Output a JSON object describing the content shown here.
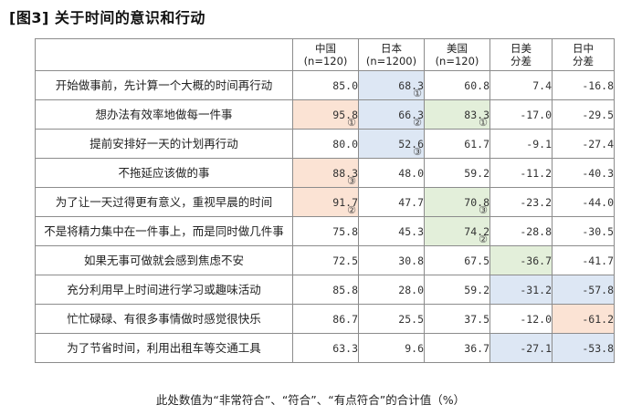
{
  "title": "[图3] 关于时间的意识和行动",
  "headers": {
    "china": [
      "中国",
      "(n=120)"
    ],
    "japan": [
      "日本",
      "(n=1200)"
    ],
    "usa": [
      "美国",
      "(n=120)"
    ],
    "diff_jp_us": [
      "日美",
      "分差"
    ],
    "diff_jp_cn": [
      "日中",
      "分差"
    ]
  },
  "colors": {
    "orange": "#fbe3d4",
    "blue": "#dde7f4",
    "green": "#e3efda",
    "border": "#8c8c8c"
  },
  "rows": [
    {
      "label": "开始做事前，先计算一个大概的时间再行动",
      "cn": "85.0",
      "jp": "68.3",
      "jp_rank": "①",
      "us": "60.8",
      "d1": "7.4",
      "d2": "-16.8"
    },
    {
      "label": "想办法有效率地做每一件事",
      "cn": "95.8",
      "cn_rank": "①",
      "jp": "66.3",
      "jp_rank": "②",
      "us": "83.3",
      "us_rank": "①",
      "d1": "-17.0",
      "d2": "-29.5"
    },
    {
      "label": "提前安排好一天的计划再行动",
      "cn": "80.0",
      "jp": "52.6",
      "jp_rank": "③",
      "us": "61.7",
      "d1": "-9.1",
      "d2": "-27.4"
    },
    {
      "label": "不拖延应该做的事",
      "cn": "88.3",
      "cn_rank": "③",
      "jp": "48.0",
      "us": "59.2",
      "d1": "-11.2",
      "d2": "-40.3"
    },
    {
      "label": "为了让一天过得更有意义，重视早晨的时间",
      "cn": "91.7",
      "cn_rank": "②",
      "jp": "47.7",
      "us": "70.8",
      "us_rank": "③",
      "d1": "-23.2",
      "d2": "-44.0"
    },
    {
      "label": "不是将精力集中在一件事上，而是同时做几件事",
      "cn": "75.8",
      "jp": "45.3",
      "us": "74.2",
      "us_rank": "②",
      "d1": "-28.8",
      "d2": "-30.5"
    },
    {
      "label": "如果无事可做就会感到焦虑不安",
      "cn": "72.5",
      "jp": "30.8",
      "us": "67.5",
      "d1": "-36.7",
      "d2": "-41.7"
    },
    {
      "label": "充分利用早上时间进行学习或趣味活动",
      "cn": "85.8",
      "jp": "28.0",
      "us": "59.2",
      "d1": "-31.2",
      "d2": "-57.8"
    },
    {
      "label": "忙忙碌碌、有很多事情做时感觉很快乐",
      "cn": "86.7",
      "jp": "25.5",
      "us": "37.5",
      "d1": "-12.0",
      "d2": "-61.2"
    },
    {
      "label": "为了节省时间，利用出租车等交通工具",
      "cn": "63.3",
      "jp": "9.6",
      "us": "36.7",
      "d1": "-27.1",
      "d2": "-53.8"
    }
  ],
  "note": "此处数值为“非常符合”、“符合”、“有点符合”的合计值（%）"
}
